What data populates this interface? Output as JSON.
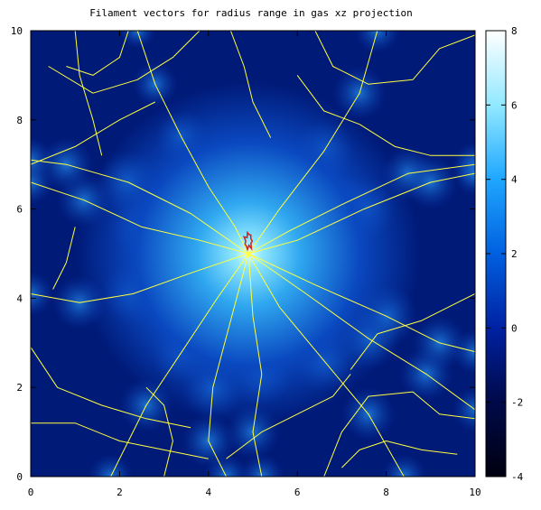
{
  "chart_data": {
    "type": "heatmap",
    "title": "Filament vectors for radius range in gas xz projection",
    "xlabel": "",
    "ylabel": "",
    "xlim": [
      0,
      10
    ],
    "ylim": [
      0,
      10
    ],
    "x_ticks": [
      "0",
      "2",
      "4",
      "6",
      "8",
      "10"
    ],
    "y_ticks": [
      "0",
      "2",
      "4",
      "6",
      "8",
      "10"
    ],
    "colorbar": {
      "range": [
        -4,
        8
      ],
      "ticks": [
        "-4",
        "-2",
        "0",
        "2",
        "4",
        "6",
        "8"
      ],
      "colors": [
        "#000010",
        "#000a4a",
        "#0020a0",
        "#0060e0",
        "#20a8ff",
        "#90e8ff",
        "#ffffff"
      ]
    },
    "density_peak": {
      "x": 4.9,
      "y": 5.0
    },
    "filament_color": "#ffff40",
    "core_marker_color": "#d02020",
    "filaments": [
      [
        [
          4.9,
          5.0
        ],
        [
          4.6,
          5.6
        ],
        [
          4.0,
          6.5
        ],
        [
          3.4,
          7.6
        ],
        [
          2.8,
          8.8
        ],
        [
          2.4,
          10.0
        ]
      ],
      [
        [
          4.9,
          5.0
        ],
        [
          5.6,
          6.0
        ],
        [
          6.6,
          7.3
        ],
        [
          7.4,
          8.6
        ],
        [
          7.8,
          10.0
        ]
      ],
      [
        [
          4.9,
          5.0
        ],
        [
          5.8,
          5.5
        ],
        [
          7.0,
          6.1
        ],
        [
          8.5,
          6.8
        ],
        [
          10.0,
          7.0
        ]
      ],
      [
        [
          4.9,
          5.0
        ],
        [
          6.0,
          5.3
        ],
        [
          7.5,
          6.0
        ],
        [
          9.0,
          6.6
        ],
        [
          10.0,
          6.8
        ]
      ],
      [
        [
          4.9,
          5.0
        ],
        [
          3.8,
          5.3
        ],
        [
          2.5,
          5.6
        ],
        [
          1.2,
          6.2
        ],
        [
          0.0,
          6.6
        ]
      ],
      [
        [
          4.9,
          5.0
        ],
        [
          3.6,
          5.9
        ],
        [
          2.2,
          6.6
        ],
        [
          0.8,
          7.0
        ],
        [
          0.0,
          7.1
        ]
      ],
      [
        [
          4.9,
          5.0
        ],
        [
          3.7,
          4.6
        ],
        [
          2.3,
          4.1
        ],
        [
          1.1,
          3.9
        ],
        [
          0.0,
          4.1
        ]
      ],
      [
        [
          4.9,
          5.0
        ],
        [
          4.2,
          4.0
        ],
        [
          3.4,
          2.8
        ],
        [
          2.6,
          1.6
        ],
        [
          1.8,
          0.0
        ]
      ],
      [
        [
          4.9,
          5.0
        ],
        [
          4.5,
          3.5
        ],
        [
          4.1,
          2.0
        ],
        [
          4.0,
          0.8
        ],
        [
          4.4,
          0.0
        ]
      ],
      [
        [
          4.9,
          5.0
        ],
        [
          5.6,
          3.8
        ],
        [
          6.6,
          2.6
        ],
        [
          7.6,
          1.4
        ],
        [
          8.4,
          0.0
        ]
      ],
      [
        [
          4.9,
          5.0
        ],
        [
          6.2,
          4.1
        ],
        [
          7.6,
          3.1
        ],
        [
          8.9,
          2.3
        ],
        [
          10.0,
          1.5
        ]
      ],
      [
        [
          4.9,
          5.0
        ],
        [
          6.4,
          4.3
        ],
        [
          8.0,
          3.6
        ],
        [
          9.2,
          3.0
        ],
        [
          10.0,
          2.8
        ]
      ],
      [
        [
          4.9,
          5.0
        ],
        [
          5.0,
          3.6
        ],
        [
          5.2,
          2.3
        ],
        [
          5.0,
          1.0
        ],
        [
          5.2,
          0.0
        ]
      ],
      [
        [
          0.4,
          9.2
        ],
        [
          1.4,
          8.6
        ],
        [
          2.4,
          8.9
        ],
        [
          3.2,
          9.4
        ],
        [
          3.8,
          10.0
        ]
      ],
      [
        [
          0.0,
          7.0
        ],
        [
          1.0,
          7.4
        ],
        [
          2.0,
          8.0
        ],
        [
          2.8,
          8.4
        ]
      ],
      [
        [
          6.0,
          9.0
        ],
        [
          6.6,
          8.2
        ],
        [
          7.4,
          7.9
        ],
        [
          8.2,
          7.4
        ],
        [
          9.0,
          7.2
        ],
        [
          10.0,
          7.2
        ]
      ],
      [
        [
          6.4,
          10.0
        ],
        [
          6.8,
          9.2
        ],
        [
          7.6,
          8.8
        ],
        [
          8.6,
          8.9
        ],
        [
          9.2,
          9.6
        ],
        [
          10.0,
          9.9
        ]
      ],
      [
        [
          0.0,
          2.9
        ],
        [
          0.6,
          2.0
        ],
        [
          1.6,
          1.6
        ],
        [
          2.6,
          1.3
        ],
        [
          3.6,
          1.1
        ]
      ],
      [
        [
          0.0,
          1.2
        ],
        [
          1.0,
          1.2
        ],
        [
          2.0,
          0.8
        ],
        [
          3.0,
          0.6
        ],
        [
          4.0,
          0.4
        ]
      ],
      [
        [
          4.4,
          0.4
        ],
        [
          5.2,
          1.0
        ],
        [
          6.0,
          1.4
        ],
        [
          6.8,
          1.8
        ],
        [
          7.2,
          2.3
        ]
      ],
      [
        [
          6.6,
          0.0
        ],
        [
          7.0,
          1.0
        ],
        [
          7.6,
          1.8
        ],
        [
          8.6,
          1.9
        ],
        [
          9.2,
          1.4
        ],
        [
          10.0,
          1.3
        ]
      ],
      [
        [
          7.2,
          2.4
        ],
        [
          7.8,
          3.2
        ],
        [
          8.8,
          3.5
        ],
        [
          9.6,
          3.9
        ],
        [
          10.0,
          4.1
        ]
      ],
      [
        [
          1.0,
          5.6
        ],
        [
          0.8,
          4.8
        ],
        [
          0.5,
          4.2
        ]
      ],
      [
        [
          2.2,
          10.0
        ],
        [
          2.0,
          9.4
        ],
        [
          1.4,
          9.0
        ],
        [
          0.8,
          9.2
        ]
      ],
      [
        [
          5.4,
          7.6
        ],
        [
          5.0,
          8.4
        ],
        [
          4.8,
          9.2
        ],
        [
          4.5,
          10.0
        ]
      ],
      [
        [
          7.0,
          0.2
        ],
        [
          7.4,
          0.6
        ],
        [
          8.0,
          0.8
        ],
        [
          8.8,
          0.6
        ],
        [
          9.6,
          0.5
        ]
      ],
      [
        [
          3.0,
          0.0
        ],
        [
          3.2,
          0.8
        ],
        [
          3.0,
          1.6
        ],
        [
          2.6,
          2.0
        ]
      ],
      [
        [
          1.0,
          10.0
        ],
        [
          1.1,
          9.0
        ],
        [
          1.4,
          8.0
        ],
        [
          1.6,
          7.2
        ]
      ]
    ]
  }
}
